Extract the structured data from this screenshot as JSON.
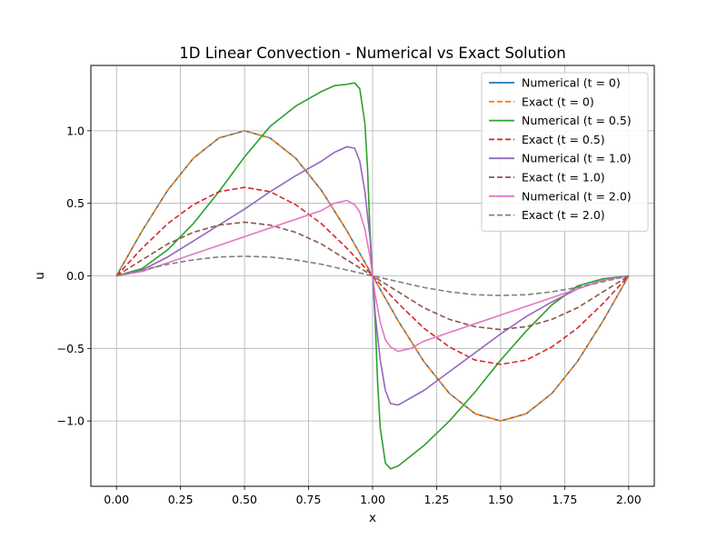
{
  "chart_data": {
    "type": "line",
    "title": "1D Linear Convection - Numerical vs Exact Solution",
    "xlabel": "x",
    "ylabel": "u",
    "xlim": [
      -0.1,
      2.1
    ],
    "ylim": [
      -1.45,
      1.45
    ],
    "xticks": [
      0.0,
      0.25,
      0.5,
      0.75,
      1.0,
      1.25,
      1.5,
      1.75,
      2.0
    ],
    "xtick_labels": [
      "0.00",
      "0.25",
      "0.50",
      "0.75",
      "1.00",
      "1.25",
      "1.50",
      "1.75",
      "2.00"
    ],
    "yticks": [
      -1.0,
      -0.5,
      0.0,
      0.5,
      1.0
    ],
    "ytick_labels": [
      "−1.0",
      "−0.5",
      "0.0",
      "0.5",
      "1.0"
    ],
    "grid": true,
    "legend_position": "top-right",
    "series": [
      {
        "name": "Numerical (t = 0)",
        "color": "#1f77b4",
        "dash": "solid",
        "x": [
          0.0,
          0.1,
          0.2,
          0.3,
          0.4,
          0.5,
          0.6,
          0.7,
          0.8,
          0.9,
          1.0,
          1.1,
          1.2,
          1.3,
          1.4,
          1.5,
          1.6,
          1.7,
          1.8,
          1.9,
          2.0
        ],
        "y": [
          0.0,
          0.31,
          0.59,
          0.81,
          0.95,
          1.0,
          0.95,
          0.81,
          0.59,
          0.31,
          0.0,
          -0.31,
          -0.59,
          -0.81,
          -0.95,
          -1.0,
          -0.95,
          -0.81,
          -0.59,
          -0.31,
          0.0
        ]
      },
      {
        "name": "Exact (t = 0)",
        "color": "#ff7f0e",
        "dash": "dashed",
        "x": [
          0.0,
          0.1,
          0.2,
          0.3,
          0.4,
          0.5,
          0.6,
          0.7,
          0.8,
          0.9,
          1.0,
          1.1,
          1.2,
          1.3,
          1.4,
          1.5,
          1.6,
          1.7,
          1.8,
          1.9,
          2.0
        ],
        "y": [
          0.0,
          0.31,
          0.59,
          0.81,
          0.95,
          1.0,
          0.95,
          0.81,
          0.59,
          0.31,
          0.0,
          -0.31,
          -0.59,
          -0.81,
          -0.95,
          -1.0,
          -0.95,
          -0.81,
          -0.59,
          -0.31,
          0.0
        ]
      },
      {
        "name": "Numerical (t = 0.5)",
        "color": "#2ca02c",
        "dash": "solid",
        "x": [
          0.0,
          0.1,
          0.2,
          0.3,
          0.4,
          0.5,
          0.6,
          0.7,
          0.8,
          0.85,
          0.9,
          0.93,
          0.95,
          0.97,
          0.98,
          0.99,
          1.0,
          1.01,
          1.02,
          1.03,
          1.05,
          1.07,
          1.1,
          1.2,
          1.3,
          1.4,
          1.5,
          1.6,
          1.7,
          1.8,
          1.9,
          2.0
        ],
        "y": [
          0.0,
          0.05,
          0.18,
          0.36,
          0.58,
          0.82,
          1.03,
          1.17,
          1.27,
          1.31,
          1.32,
          1.33,
          1.29,
          1.05,
          0.75,
          0.3,
          0.0,
          -0.3,
          -0.75,
          -1.05,
          -1.29,
          -1.33,
          -1.31,
          -1.17,
          -1.0,
          -0.8,
          -0.58,
          -0.38,
          -0.2,
          -0.07,
          -0.02,
          0.0
        ]
      },
      {
        "name": "Exact (t = 0.5)",
        "color": "#d62728",
        "dash": "dashed",
        "x": [
          0.0,
          0.1,
          0.2,
          0.3,
          0.4,
          0.5,
          0.6,
          0.7,
          0.8,
          0.9,
          1.0,
          1.1,
          1.2,
          1.3,
          1.4,
          1.5,
          1.6,
          1.7,
          1.8,
          1.9,
          2.0
        ],
        "y": [
          0.0,
          0.19,
          0.36,
          0.49,
          0.58,
          0.61,
          0.58,
          0.49,
          0.36,
          0.19,
          0.0,
          -0.19,
          -0.36,
          -0.49,
          -0.58,
          -0.61,
          -0.58,
          -0.49,
          -0.36,
          -0.19,
          0.0
        ]
      },
      {
        "name": "Numerical (t = 1.0)",
        "color": "#9467bd",
        "dash": "solid",
        "x": [
          0.0,
          0.1,
          0.2,
          0.3,
          0.4,
          0.5,
          0.6,
          0.7,
          0.8,
          0.85,
          0.9,
          0.93,
          0.95,
          0.97,
          0.99,
          1.0,
          1.01,
          1.03,
          1.05,
          1.07,
          1.1,
          1.2,
          1.3,
          1.4,
          1.5,
          1.6,
          1.7,
          1.8,
          1.9,
          2.0
        ],
        "y": [
          0.0,
          0.04,
          0.13,
          0.24,
          0.35,
          0.46,
          0.58,
          0.69,
          0.79,
          0.85,
          0.89,
          0.88,
          0.79,
          0.58,
          0.26,
          0.0,
          -0.26,
          -0.58,
          -0.79,
          -0.88,
          -0.89,
          -0.79,
          -0.66,
          -0.53,
          -0.4,
          -0.28,
          -0.18,
          -0.09,
          -0.03,
          0.0
        ]
      },
      {
        "name": "Exact (t = 1.0)",
        "color": "#8c564b",
        "dash": "dashed",
        "x": [
          0.0,
          0.1,
          0.2,
          0.3,
          0.4,
          0.5,
          0.6,
          0.7,
          0.8,
          0.9,
          1.0,
          1.1,
          1.2,
          1.3,
          1.4,
          1.5,
          1.6,
          1.7,
          1.8,
          1.9,
          2.0
        ],
        "y": [
          0.0,
          0.11,
          0.22,
          0.3,
          0.35,
          0.37,
          0.35,
          0.3,
          0.22,
          0.11,
          0.0,
          -0.11,
          -0.22,
          -0.3,
          -0.35,
          -0.37,
          -0.35,
          -0.3,
          -0.22,
          -0.11,
          0.0
        ]
      },
      {
        "name": "Numerical (t = 2.0)",
        "color": "#e377c2",
        "dash": "solid",
        "x": [
          0.0,
          0.1,
          0.2,
          0.3,
          0.4,
          0.5,
          0.6,
          0.7,
          0.8,
          0.85,
          0.9,
          0.93,
          0.95,
          0.97,
          0.99,
          1.0,
          1.01,
          1.03,
          1.05,
          1.07,
          1.1,
          1.15,
          1.2,
          1.3,
          1.4,
          1.5,
          1.6,
          1.7,
          1.8,
          1.9,
          2.0
        ],
        "y": [
          0.0,
          0.03,
          0.09,
          0.15,
          0.21,
          0.27,
          0.33,
          0.39,
          0.45,
          0.5,
          0.52,
          0.49,
          0.44,
          0.32,
          0.13,
          0.0,
          -0.13,
          -0.32,
          -0.44,
          -0.49,
          -0.52,
          -0.5,
          -0.45,
          -0.39,
          -0.33,
          -0.27,
          -0.21,
          -0.15,
          -0.09,
          -0.03,
          0.0
        ]
      },
      {
        "name": "Exact (t = 2.0)",
        "color": "#7f7f7f",
        "dash": "dashed",
        "x": [
          0.0,
          0.1,
          0.2,
          0.3,
          0.4,
          0.5,
          0.6,
          0.7,
          0.8,
          0.9,
          1.0,
          1.1,
          1.2,
          1.3,
          1.4,
          1.5,
          1.6,
          1.7,
          1.8,
          1.9,
          2.0
        ],
        "y": [
          0.0,
          0.04,
          0.08,
          0.11,
          0.13,
          0.135,
          0.13,
          0.11,
          0.08,
          0.04,
          0.0,
          -0.04,
          -0.08,
          -0.11,
          -0.13,
          -0.135,
          -0.13,
          -0.11,
          -0.08,
          -0.04,
          0.0
        ]
      }
    ]
  }
}
